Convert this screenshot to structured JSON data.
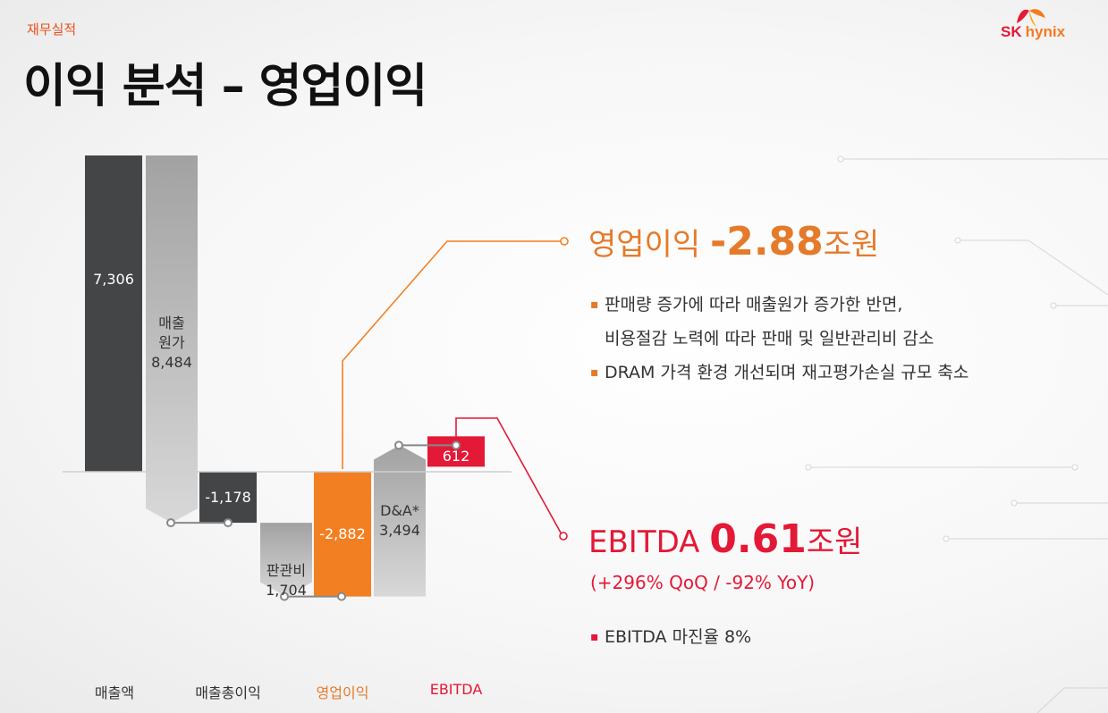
{
  "header": {
    "section_label": "재무실적",
    "title": "이익 분석 – 영업이익",
    "logo_sk": "SK",
    "logo_hynix": "hynix"
  },
  "colors": {
    "dark_bar": "#444546",
    "gray_bar": "#a8a8a8",
    "orange": "#f28023",
    "red": "#e31937"
  },
  "chart_data": {
    "type": "bar",
    "subtype": "waterfall",
    "steps": [
      {
        "label": "7,306",
        "value": 7306,
        "kind": "total"
      },
      {
        "label": "매출\n원가\n8,484",
        "value": -8484,
        "kind": "decrease"
      },
      {
        "label": "-1,178",
        "value": -1178,
        "kind": "subtotal"
      },
      {
        "label": "판관비\n1,704",
        "value": -1704,
        "kind": "decrease"
      },
      {
        "label": "-2,882",
        "value": -2882,
        "kind": "subtotal"
      },
      {
        "label": "D&A*\n3,494",
        "value": 3494,
        "kind": "increase"
      },
      {
        "label": "612",
        "value": 612,
        "kind": "total"
      }
    ],
    "categories": [
      "매출액",
      "매출총이익",
      "영업이익",
      "EBITDA"
    ]
  },
  "operating_profit": {
    "label": "영업이익 ",
    "value": "-2.88",
    "unit": "조원",
    "bullets": [
      {
        "lines": [
          "판매량 증가에 따라 매출원가 증가한 반면,",
          "비용절감 노력에 따라 판매 및 일반관리비 감소"
        ]
      },
      {
        "lines": [
          "DRAM 가격 환경 개선되며 재고평가손실 규모 축소"
        ]
      }
    ]
  },
  "ebitda": {
    "label": "EBITDA ",
    "value": "0.61",
    "unit": "조원",
    "change": "(+296% QoQ / -92% YoY)",
    "bullets": [
      "EBITDA 마진율 8%"
    ]
  }
}
